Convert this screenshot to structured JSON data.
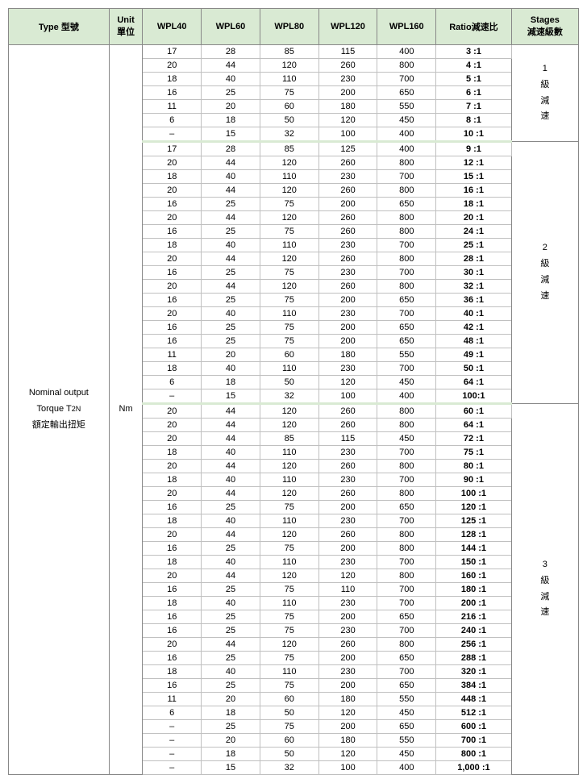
{
  "headers": {
    "type": "Type 型號",
    "unit": "Unit\n單位",
    "c1": "WPL40",
    "c2": "WPL60",
    "c3": "WPL80",
    "c4": "WPL120",
    "c5": "WPL160",
    "ratio": "Ratio減速比",
    "stages": "Stages\n減速級數"
  },
  "type_cell": "Nominal output\nTorque T2N\n額定輸出扭矩",
  "unit_cell": "Nm",
  "stages_labels": [
    "1\n級\n減\n速",
    "2\n級\n減\n速",
    "3\n級\n減\n速"
  ],
  "rows": [
    {
      "v": [
        "17",
        "28",
        "85",
        "115",
        "400"
      ],
      "r": "3 :1"
    },
    {
      "v": [
        "20",
        "44",
        "120",
        "260",
        "800"
      ],
      "r": "4 :1"
    },
    {
      "v": [
        "18",
        "40",
        "110",
        "230",
        "700"
      ],
      "r": "5 :1"
    },
    {
      "v": [
        "16",
        "25",
        "75",
        "200",
        "650"
      ],
      "r": "6 :1"
    },
    {
      "v": [
        "11",
        "20",
        "60",
        "180",
        "550"
      ],
      "r": "7 :1"
    },
    {
      "v": [
        "6",
        "18",
        "50",
        "120",
        "450"
      ],
      "r": "8 :1"
    },
    {
      "v": [
        "–",
        "15",
        "32",
        "100",
        "400"
      ],
      "r": "10 :1",
      "sep": true
    },
    {
      "v": [
        "17",
        "28",
        "85",
        "125",
        "400"
      ],
      "r": "9 :1"
    },
    {
      "v": [
        "20",
        "44",
        "120",
        "260",
        "800"
      ],
      "r": "12 :1"
    },
    {
      "v": [
        "18",
        "40",
        "110",
        "230",
        "700"
      ],
      "r": "15 :1"
    },
    {
      "v": [
        "20",
        "44",
        "120",
        "260",
        "800"
      ],
      "r": "16 :1"
    },
    {
      "v": [
        "16",
        "25",
        "75",
        "200",
        "650"
      ],
      "r": "18 :1"
    },
    {
      "v": [
        "20",
        "44",
        "120",
        "260",
        "800"
      ],
      "r": "20 :1"
    },
    {
      "v": [
        "16",
        "25",
        "75",
        "260",
        "800"
      ],
      "r": "24 :1"
    },
    {
      "v": [
        "18",
        "40",
        "110",
        "230",
        "700"
      ],
      "r": "25 :1"
    },
    {
      "v": [
        "20",
        "44",
        "120",
        "260",
        "800"
      ],
      "r": "28 :1"
    },
    {
      "v": [
        "16",
        "25",
        "75",
        "230",
        "700"
      ],
      "r": "30 :1"
    },
    {
      "v": [
        "20",
        "44",
        "120",
        "260",
        "800"
      ],
      "r": "32 :1"
    },
    {
      "v": [
        "16",
        "25",
        "75",
        "200",
        "650"
      ],
      "r": "36 :1"
    },
    {
      "v": [
        "20",
        "40",
        "110",
        "230",
        "700"
      ],
      "r": "40 :1"
    },
    {
      "v": [
        "16",
        "25",
        "75",
        "200",
        "650"
      ],
      "r": "42 :1"
    },
    {
      "v": [
        "16",
        "25",
        "75",
        "200",
        "650"
      ],
      "r": "48 :1"
    },
    {
      "v": [
        "11",
        "20",
        "60",
        "180",
        "550"
      ],
      "r": "49 :1"
    },
    {
      "v": [
        "18",
        "40",
        "110",
        "230",
        "700"
      ],
      "r": "50 :1"
    },
    {
      "v": [
        "6",
        "18",
        "50",
        "120",
        "450"
      ],
      "r": "64 :1"
    },
    {
      "v": [
        "–",
        "15",
        "32",
        "100",
        "400"
      ],
      "r": "100:1",
      "sep": true
    },
    {
      "v": [
        "20",
        "44",
        "120",
        "260",
        "800"
      ],
      "r": "60 :1"
    },
    {
      "v": [
        "20",
        "44",
        "120",
        "260",
        "800"
      ],
      "r": "64 :1"
    },
    {
      "v": [
        "20",
        "44",
        "85",
        "115",
        "450"
      ],
      "r": "72 :1"
    },
    {
      "v": [
        "18",
        "40",
        "110",
        "230",
        "700"
      ],
      "r": "75 :1"
    },
    {
      "v": [
        "20",
        "44",
        "120",
        "260",
        "800"
      ],
      "r": "80 :1"
    },
    {
      "v": [
        "18",
        "40",
        "110",
        "230",
        "700"
      ],
      "r": "90 :1"
    },
    {
      "v": [
        "20",
        "44",
        "120",
        "260",
        "800"
      ],
      "r": "100 :1"
    },
    {
      "v": [
        "16",
        "25",
        "75",
        "200",
        "650"
      ],
      "r": "120 :1"
    },
    {
      "v": [
        "18",
        "40",
        "110",
        "230",
        "700"
      ],
      "r": "125 :1"
    },
    {
      "v": [
        "20",
        "44",
        "120",
        "260",
        "800"
      ],
      "r": "128 :1"
    },
    {
      "v": [
        "16",
        "25",
        "75",
        "200",
        "800"
      ],
      "r": "144 :1"
    },
    {
      "v": [
        "18",
        "40",
        "110",
        "230",
        "700"
      ],
      "r": "150 :1"
    },
    {
      "v": [
        "20",
        "44",
        "120",
        "120",
        "800"
      ],
      "r": "160 :1"
    },
    {
      "v": [
        "16",
        "25",
        "75",
        "110",
        "700"
      ],
      "r": "180 :1"
    },
    {
      "v": [
        "18",
        "40",
        "110",
        "230",
        "700"
      ],
      "r": "200 :1"
    },
    {
      "v": [
        "16",
        "25",
        "75",
        "200",
        "650"
      ],
      "r": "216 :1"
    },
    {
      "v": [
        "16",
        "25",
        "75",
        "230",
        "700"
      ],
      "r": "240 :1"
    },
    {
      "v": [
        "20",
        "44",
        "120",
        "260",
        "800"
      ],
      "r": "256 :1"
    },
    {
      "v": [
        "16",
        "25",
        "75",
        "200",
        "650"
      ],
      "r": "288 :1"
    },
    {
      "v": [
        "18",
        "40",
        "110",
        "230",
        "700"
      ],
      "r": "320 :1"
    },
    {
      "v": [
        "16",
        "25",
        "75",
        "200",
        "650"
      ],
      "r": "384 :1"
    },
    {
      "v": [
        "11",
        "20",
        "60",
        "180",
        "550"
      ],
      "r": "448 :1"
    },
    {
      "v": [
        "6",
        "18",
        "50",
        "120",
        "450"
      ],
      "r": "512 :1"
    },
    {
      "v": [
        "–",
        "25",
        "75",
        "200",
        "650"
      ],
      "r": "600 :1"
    },
    {
      "v": [
        "–",
        "20",
        "60",
        "180",
        "550"
      ],
      "r": "700 :1"
    },
    {
      "v": [
        "–",
        "18",
        "50",
        "120",
        "450"
      ],
      "r": "800 :1"
    },
    {
      "v": [
        "–",
        "15",
        "32",
        "100",
        "400"
      ],
      "r": "1,000 :1"
    }
  ],
  "stage_spans": [
    7,
    19,
    27
  ]
}
